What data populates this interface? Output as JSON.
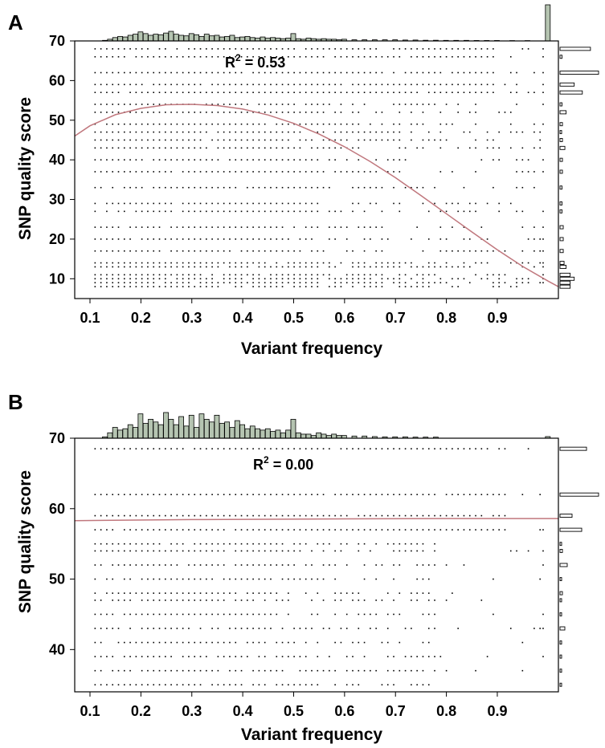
{
  "chart_data": [
    {
      "panel": "A",
      "type": "scatter",
      "xlabel": "Variant  frequency",
      "ylabel": "SNP quality score",
      "xlim": [
        0.07,
        1.02
      ],
      "ylim": [
        5,
        70
      ],
      "xticks": [
        0.1,
        0.2,
        0.3,
        0.4,
        0.5,
        0.6,
        0.7,
        0.8,
        0.9
      ],
      "xtick_labels": [
        "0.1",
        "0.2",
        "0.3",
        "0.4",
        "0.5",
        "0.6",
        "0.7",
        "0.8",
        "0.9"
      ],
      "yticks": [
        10,
        20,
        30,
        40,
        50,
        60,
        70
      ],
      "ytick_labels": [
        "10",
        "20",
        "30",
        "40",
        "50",
        "60",
        "70"
      ],
      "annotation": {
        "base": "R",
        "sup": "2",
        "rest": " = 0.53"
      },
      "fit_curve": {
        "x": [
          0.07,
          0.1,
          0.15,
          0.2,
          0.25,
          0.3,
          0.35,
          0.4,
          0.45,
          0.5,
          0.55,
          0.6,
          0.65,
          0.7,
          0.75,
          0.8,
          0.85,
          0.9,
          0.95,
          1.0,
          1.02
        ],
        "y": [
          46.0,
          48.6,
          51.4,
          53.0,
          53.9,
          54.0,
          53.7,
          52.8,
          51.3,
          49.2,
          46.5,
          43.3,
          39.6,
          35.5,
          31.0,
          26.4,
          21.8,
          17.3,
          13.1,
          9.4,
          8.0
        ]
      },
      "top_histogram": {
        "bins": [
          0.13,
          0.14,
          0.15,
          0.16,
          0.17,
          0.18,
          0.19,
          0.2,
          0.21,
          0.22,
          0.23,
          0.24,
          0.25,
          0.26,
          0.27,
          0.28,
          0.29,
          0.3,
          0.31,
          0.32,
          0.33,
          0.34,
          0.35,
          0.36,
          0.37,
          0.38,
          0.39,
          0.4,
          0.41,
          0.42,
          0.43,
          0.44,
          0.45,
          0.46,
          0.47,
          0.48,
          0.49,
          0.5,
          0.51,
          0.52,
          0.53,
          0.54,
          0.55,
          0.56,
          0.57,
          0.58,
          0.59,
          0.6,
          0.62,
          0.64,
          0.66,
          0.68,
          0.7,
          0.72,
          0.74,
          0.76,
          0.78,
          0.8,
          0.82,
          0.84,
          0.86,
          0.88,
          0.9,
          0.93,
          0.96,
          1.0
        ],
        "counts": [
          0.5,
          1.5,
          3,
          4,
          3.5,
          5,
          6,
          8,
          6.5,
          5,
          6,
          5.5,
          7,
          8.5,
          6,
          5,
          4.5,
          6.5,
          5.5,
          4,
          6,
          4.5,
          5,
          3.5,
          4,
          5,
          3,
          3.5,
          4,
          3,
          2.5,
          3.5,
          2.5,
          3,
          2.5,
          2,
          2.5,
          6.5,
          2,
          1.5,
          2.5,
          2,
          1.5,
          2,
          1.5,
          1.5,
          1,
          1.5,
          1,
          1,
          1,
          1,
          1,
          0.8,
          0.8,
          0.6,
          0.6,
          0.5,
          0.5,
          0.5,
          0.4,
          0.4,
          0.4,
          0.3,
          0.3,
          32
        ]
      },
      "right_histogram": {
        "values": [
          8,
          9,
          10,
          11,
          13,
          14,
          17,
          20,
          23,
          27,
          29,
          33,
          37,
          40,
          43,
          45,
          47,
          49,
          52,
          54,
          57,
          59,
          62,
          66,
          68
        ],
        "counts": [
          2.5,
          2.5,
          3.5,
          2.5,
          1.5,
          1,
          0.8,
          0.8,
          0.8,
          0.5,
          0.5,
          0.5,
          0.6,
          0.6,
          1.2,
          0.6,
          0.4,
          0.6,
          1.5,
          0.5,
          5.5,
          3.5,
          9.5,
          0.5,
          7.5
        ]
      }
    },
    {
      "panel": "B",
      "type": "scatter",
      "xlabel": "Variant frequency",
      "ylabel": "SNP quality score",
      "xlim": [
        0.07,
        1.02
      ],
      "ylim": [
        34,
        70
      ],
      "xticks": [
        0.1,
        0.2,
        0.3,
        0.4,
        0.5,
        0.6,
        0.7,
        0.8,
        0.9
      ],
      "xtick_labels": [
        "0.1",
        "0.2",
        "0.3",
        "0.4",
        "0.5",
        "0.6",
        "0.7",
        "0.8",
        "0.9"
      ],
      "yticks": [
        40,
        50,
        60,
        70
      ],
      "ytick_labels": [
        "40",
        "50",
        "60",
        "70"
      ],
      "annotation": {
        "base": "R",
        "sup": "2",
        "rest": " = 0.00"
      },
      "fit_curve": {
        "x": [
          0.07,
          0.3,
          0.6,
          0.8,
          1.02
        ],
        "y": [
          58.3,
          58.45,
          58.55,
          58.6,
          58.6
        ]
      },
      "top_histogram": {
        "bins": [
          0.13,
          0.14,
          0.15,
          0.16,
          0.17,
          0.18,
          0.19,
          0.2,
          0.21,
          0.22,
          0.23,
          0.24,
          0.25,
          0.26,
          0.27,
          0.28,
          0.29,
          0.3,
          0.31,
          0.32,
          0.33,
          0.34,
          0.35,
          0.36,
          0.37,
          0.38,
          0.39,
          0.4,
          0.41,
          0.42,
          0.43,
          0.44,
          0.45,
          0.46,
          0.47,
          0.48,
          0.49,
          0.5,
          0.51,
          0.52,
          0.53,
          0.54,
          0.55,
          0.56,
          0.57,
          0.58,
          0.59,
          0.6,
          0.62,
          0.64,
          0.66,
          0.68,
          0.7,
          0.72,
          0.74,
          0.76,
          0.78,
          1.0
        ],
        "counts": [
          0.5,
          2,
          4,
          3,
          3.5,
          5,
          4,
          9,
          5.5,
          7,
          6,
          5,
          9.5,
          7,
          5,
          8,
          4.5,
          8.5,
          4,
          9,
          7,
          6,
          8.5,
          5.5,
          6,
          4,
          6.5,
          5,
          3.5,
          4.5,
          3.5,
          3,
          3.5,
          2.5,
          3,
          2,
          3,
          7,
          2,
          1.5,
          1.5,
          1,
          2,
          1.5,
          1,
          1.5,
          1,
          1,
          0.8,
          0.8,
          0.6,
          0.5,
          0.5,
          0.5,
          0.4,
          0.4,
          0.4,
          0.6
        ]
      },
      "right_histogram": {
        "values": [
          35,
          37,
          39,
          41,
          43,
          45,
          47,
          48,
          50,
          52,
          54,
          55,
          57,
          59,
          62,
          68.5
        ],
        "counts": [
          0.3,
          0.3,
          0.3,
          0.3,
          1,
          0.3,
          0.3,
          0.5,
          0.3,
          1.5,
          0.5,
          0.3,
          4.5,
          2.5,
          8,
          5.5
        ]
      }
    }
  ],
  "colors": {
    "top_histogram_fill": "#b5c4b1",
    "fit_line": "#c0777d",
    "points": "#000000"
  },
  "icons": []
}
